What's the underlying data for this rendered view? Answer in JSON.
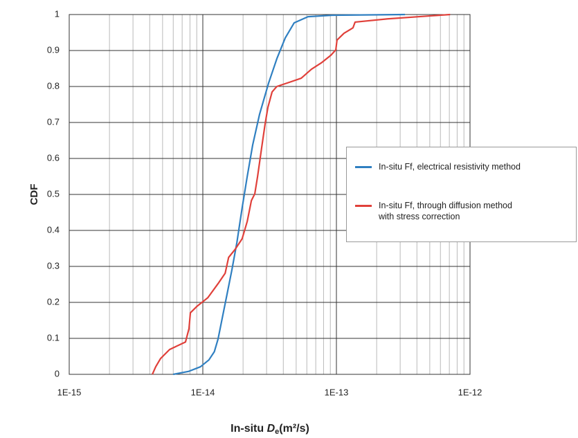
{
  "chart_data": {
    "type": "line",
    "ylabel": "CDF",
    "xlabel": {
      "text": "In-situ ",
      "symbol": "D",
      "subscript": "e",
      "unit": "(m²/s)"
    },
    "xscale": "log",
    "xlim": [
      1e-15,
      1e-12
    ],
    "xticks": [
      {
        "value": 1e-15,
        "label": "1E-15"
      },
      {
        "value": 1e-14,
        "label": "1E-14"
      },
      {
        "value": 1e-13,
        "label": "1E-13"
      },
      {
        "value": 1e-12,
        "label": "1E-12"
      }
    ],
    "ylim": [
      0,
      1
    ],
    "yticks": [
      0,
      0.1,
      0.2,
      0.3,
      0.4,
      0.5,
      0.6,
      0.7,
      0.8,
      0.9,
      1
    ],
    "grid": true,
    "minor_grid": true,
    "legend": "right",
    "series": [
      {
        "name": "In-situ Ff, electrical resistivity method",
        "color": "#2f7fc1",
        "x": [
          6e-15,
          7.8e-15,
          9.6e-15,
          1.11e-14,
          1.22e-14,
          1.3e-14,
          1.38e-14,
          1.5e-14,
          1.65e-14,
          1.8e-14,
          1.97e-14,
          2.15e-14,
          2.36e-14,
          2.66e-14,
          3.11e-14,
          3.58e-14,
          4.14e-14,
          4.83e-14,
          6.13e-14,
          9.3e-14,
          3.26e-13
        ],
        "values": [
          0,
          0.008,
          0.021,
          0.04,
          0.063,
          0.098,
          0.146,
          0.213,
          0.29,
          0.367,
          0.463,
          0.55,
          0.637,
          0.723,
          0.81,
          0.877,
          0.935,
          0.977,
          0.994,
          0.998,
          1
        ]
      },
      {
        "name": "In-situ Ff, through diffusion method\nwith stress correction",
        "color": "#e0403a",
        "x": [
          4.19e-15,
          4.44e-15,
          4.83e-15,
          5.64e-15,
          7.42e-15,
          7.88e-15,
          8.07e-15,
          9.1e-15,
          1.09e-14,
          1.3e-14,
          1.47e-14,
          1.56e-14,
          1.75e-14,
          1.97e-14,
          2.15e-14,
          2.31e-14,
          2.45e-14,
          2.57e-14,
          2.75e-14,
          2.92e-14,
          3.07e-14,
          3.3e-14,
          3.58e-14,
          4.55e-14,
          5.45e-14,
          6.5e-14,
          7.8e-14,
          9.1e-14,
          9.9e-14,
          1.01e-13,
          1.14e-13,
          1.33e-13,
          1.38e-13,
          2.42e-13,
          4.94e-13,
          7.1e-13
        ],
        "values": [
          0,
          0.021,
          0.044,
          0.069,
          0.09,
          0.127,
          0.171,
          0.19,
          0.213,
          0.252,
          0.281,
          0.325,
          0.348,
          0.377,
          0.425,
          0.483,
          0.502,
          0.55,
          0.627,
          0.694,
          0.742,
          0.785,
          0.8,
          0.813,
          0.823,
          0.848,
          0.867,
          0.887,
          0.902,
          0.929,
          0.948,
          0.963,
          0.979,
          0.988,
          0.996,
          1
        ]
      }
    ]
  }
}
